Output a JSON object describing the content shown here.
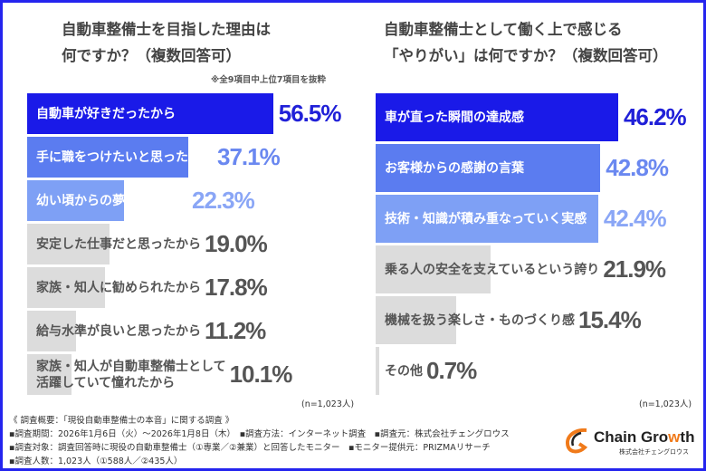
{
  "colors": {
    "border": "#2424ee",
    "primary": "#1a1ae8",
    "secondary": "#5b7cf0",
    "tertiary": "#7ea0f5",
    "grey": "#dcdcdc",
    "grey_text": "#555555",
    "logo_orange": "#f07a1a"
  },
  "chart_data": [
    {
      "type": "bar",
      "orientation": "horizontal",
      "title_lines": [
        "自動車整備士を目指した理由は",
        "何ですか？（複数回答可）"
      ],
      "note": "※全9項目中上位7項目を抜粋",
      "categories": [
        "自動車が好きだったから",
        "手に職をつけたいと思ったから",
        "幼い頃からの夢だったから",
        "安定した仕事だと思ったから",
        "家族・知人に勧められたから",
        "給与水準が良いと思ったから",
        "家族・知人が自動車整備士として\n活躍していて憧れたから"
      ],
      "values": [
        56.5,
        37.1,
        22.3,
        19.0,
        17.8,
        11.2,
        10.1
      ],
      "value_labels": [
        "56.5%",
        "37.1%",
        "22.3%",
        "19.0%",
        "17.8%",
        "11.2%",
        "10.1%"
      ],
      "unit": "%",
      "sample": "(n=1,023人)"
    },
    {
      "type": "bar",
      "orientation": "horizontal",
      "title_lines": [
        "自動車整備士として働く上で感じる",
        "「やりがい」は何ですか？（複数回答可）"
      ],
      "categories": [
        "車が直った瞬間の達成感",
        "お客様からの感謝の言葉",
        "技術・知識が積み重なっていく実感",
        "乗る人の安全を支えているという誇り",
        "機械を扱う楽しさ・ものづくり感",
        "その他"
      ],
      "values": [
        46.2,
        42.8,
        42.4,
        21.9,
        15.4,
        0.7
      ],
      "value_labels": [
        "46.2%",
        "42.8%",
        "42.4%",
        "21.9%",
        "15.4%",
        "0.7%"
      ],
      "unit": "%",
      "sample": "(n=1,023人)"
    }
  ],
  "footer": {
    "lines": [
      "《 調査概要：「現役自動車整備士の本音」に関する調査 》",
      "▪調査期間：2026年1月6日（火）～2026年1月8日（木）　▪調査方法：インターネット調査　▪調査元：株式会社チェングロウス",
      "▪調査対象：調査回答時に現役の自動車整備士（①専業／②兼業）と回答したモニター　▪モニター提供元：PRIZMAリサーチ",
      "▪調査人数：1,023人（①588人／②435人）"
    ]
  },
  "logo": {
    "name_a": "Chain Gro",
    "name_w": "w",
    "name_b": "th",
    "sub": "株式会社チェングロウス"
  }
}
